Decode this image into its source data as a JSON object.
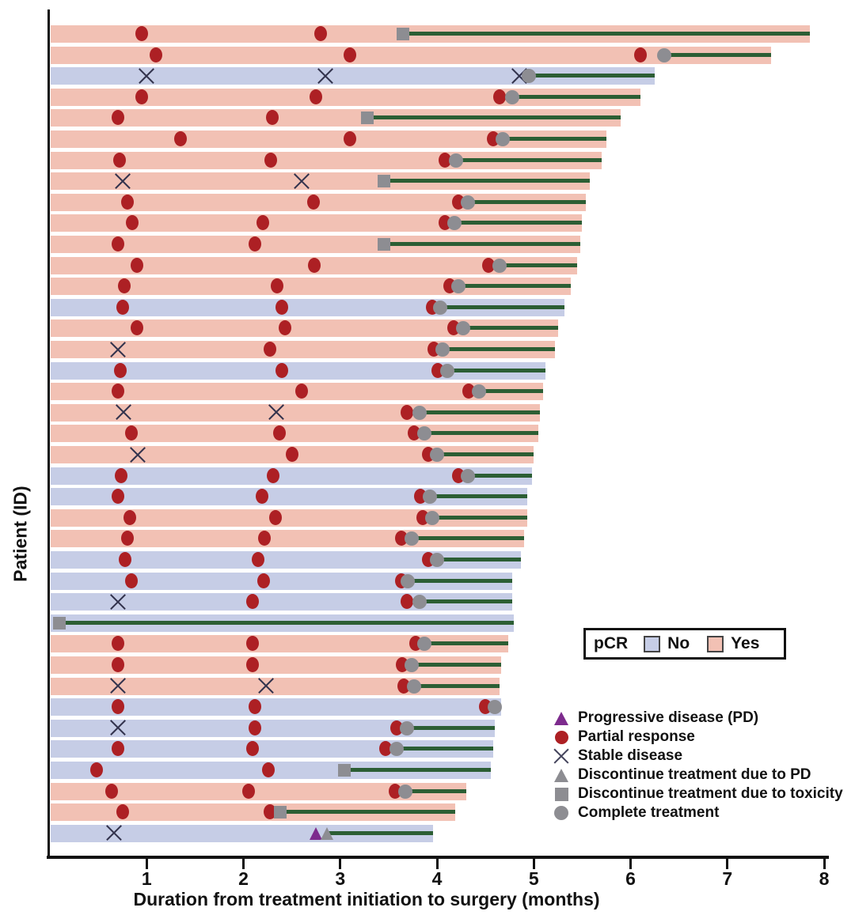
{
  "figure": {
    "x_axis_label": "Duration from treatment initiation to surgery (months)",
    "y_axis_label": "Patient (ID)"
  },
  "pcr_legend": {
    "title": "pCR",
    "no_label": "No",
    "yes_label": "Yes"
  },
  "marker_legend": [
    {
      "icon": "progressive-disease-triangle-icon",
      "label": "Progressive disease (PD)"
    },
    {
      "icon": "partial-response-circle-icon",
      "label": "Partial response"
    },
    {
      "icon": "stable-disease-x-icon",
      "label": "Stable disease"
    },
    {
      "icon": "discontinue-pd-triangle-icon",
      "label": "Discontinue treatment due to PD"
    },
    {
      "icon": "discontinue-toxicity-square-icon",
      "label": "Discontinue treatment due to toxicity"
    },
    {
      "icon": "complete-treatment-circle-icon",
      "label": "Complete treatment"
    }
  ],
  "colors": {
    "pcr_yes_bar": "#f2c1b4",
    "pcr_no_bar": "#c6cde6",
    "partial_response": "#ad2024",
    "progressive_disease": "#7d2b8d",
    "gray_marker": "#8d8d92",
    "treatment_line": "#2c5e34",
    "axis": "#111111"
  },
  "chart_data": {
    "type": "bar",
    "subtype": "swimmer-plot-horizontal",
    "title": "",
    "xlabel": "Duration from treatment initiation to surgery (months)",
    "ylabel": "Patient (ID)",
    "xlim": [
      0,
      8
    ],
    "x_ticks": [
      1,
      2,
      3,
      4,
      5,
      6,
      7,
      8
    ],
    "grid": false,
    "legend_position": "right-bottom",
    "event_types": {
      "pr": "Partial response",
      "sd": "Stable disease",
      "pd": "Progressive disease (PD)",
      "dpd": "Discontinue treatment due to PD",
      "tox": "Discontinue treatment due to toxicity",
      "comp": "Complete treatment"
    },
    "patients": [
      {
        "pcr": "Yes",
        "end": 7.85,
        "line": 3.65,
        "events": [
          {
            "t": "pr",
            "m": 0.95
          },
          {
            "t": "pr",
            "m": 2.8
          },
          {
            "t": "tox",
            "m": 3.65
          }
        ]
      },
      {
        "pcr": "Yes",
        "end": 7.45,
        "line": 6.35,
        "events": [
          {
            "t": "pr",
            "m": 1.1
          },
          {
            "t": "pr",
            "m": 3.1
          },
          {
            "t": "pr",
            "m": 6.1
          },
          {
            "t": "comp",
            "m": 6.35
          }
        ]
      },
      {
        "pcr": "No",
        "end": 6.25,
        "line": 4.95,
        "events": [
          {
            "t": "sd",
            "m": 1.0
          },
          {
            "t": "sd",
            "m": 2.85
          },
          {
            "t": "sd",
            "m": 4.85
          },
          {
            "t": "comp",
            "m": 4.95
          }
        ]
      },
      {
        "pcr": "Yes",
        "end": 6.1,
        "line": 4.78,
        "events": [
          {
            "t": "pr",
            "m": 0.95
          },
          {
            "t": "pr",
            "m": 2.75
          },
          {
            "t": "pr",
            "m": 4.65
          },
          {
            "t": "comp",
            "m": 4.78
          }
        ]
      },
      {
        "pcr": "Yes",
        "end": 5.9,
        "line": 3.28,
        "events": [
          {
            "t": "pr",
            "m": 0.7
          },
          {
            "t": "pr",
            "m": 2.3
          },
          {
            "t": "tox",
            "m": 3.28
          }
        ]
      },
      {
        "pcr": "Yes",
        "end": 5.75,
        "line": 4.68,
        "events": [
          {
            "t": "pr",
            "m": 1.35
          },
          {
            "t": "pr",
            "m": 3.1
          },
          {
            "t": "pr",
            "m": 4.58
          },
          {
            "t": "comp",
            "m": 4.68
          }
        ]
      },
      {
        "pcr": "Yes",
        "end": 5.7,
        "line": 4.2,
        "events": [
          {
            "t": "pr",
            "m": 0.72
          },
          {
            "t": "pr",
            "m": 2.28
          },
          {
            "t": "pr",
            "m": 4.08
          },
          {
            "t": "comp",
            "m": 4.2
          }
        ]
      },
      {
        "pcr": "Yes",
        "end": 5.58,
        "line": 3.45,
        "events": [
          {
            "t": "sd",
            "m": 0.75
          },
          {
            "t": "sd",
            "m": 2.6
          },
          {
            "t": "tox",
            "m": 3.45
          }
        ]
      },
      {
        "pcr": "Yes",
        "end": 5.54,
        "line": 4.32,
        "events": [
          {
            "t": "pr",
            "m": 0.8
          },
          {
            "t": "pr",
            "m": 2.72
          },
          {
            "t": "pr",
            "m": 4.22
          },
          {
            "t": "comp",
            "m": 4.32
          }
        ]
      },
      {
        "pcr": "Yes",
        "end": 5.5,
        "line": 4.18,
        "events": [
          {
            "t": "pr",
            "m": 0.85
          },
          {
            "t": "pr",
            "m": 2.2
          },
          {
            "t": "pr",
            "m": 4.08
          },
          {
            "t": "comp",
            "m": 4.18
          }
        ]
      },
      {
        "pcr": "Yes",
        "end": 5.48,
        "line": 3.45,
        "events": [
          {
            "t": "pr",
            "m": 0.7
          },
          {
            "t": "pr",
            "m": 2.12
          },
          {
            "t": "tox",
            "m": 3.45
          }
        ]
      },
      {
        "pcr": "Yes",
        "end": 5.45,
        "line": 4.65,
        "events": [
          {
            "t": "pr",
            "m": 0.9
          },
          {
            "t": "pr",
            "m": 2.73
          },
          {
            "t": "pr",
            "m": 4.53
          },
          {
            "t": "comp",
            "m": 4.65
          }
        ]
      },
      {
        "pcr": "Yes",
        "end": 5.38,
        "line": 4.22,
        "events": [
          {
            "t": "pr",
            "m": 0.77
          },
          {
            "t": "pr",
            "m": 2.35
          },
          {
            "t": "pr",
            "m": 4.13
          },
          {
            "t": "comp",
            "m": 4.22
          }
        ]
      },
      {
        "pcr": "No",
        "end": 5.32,
        "line": 4.03,
        "events": [
          {
            "t": "pr",
            "m": 0.75
          },
          {
            "t": "pr",
            "m": 2.4
          },
          {
            "t": "pr",
            "m": 3.95
          },
          {
            "t": "comp",
            "m": 4.03
          }
        ]
      },
      {
        "pcr": "Yes",
        "end": 5.25,
        "line": 4.27,
        "events": [
          {
            "t": "pr",
            "m": 0.9
          },
          {
            "t": "pr",
            "m": 2.43
          },
          {
            "t": "pr",
            "m": 4.17
          },
          {
            "t": "comp",
            "m": 4.27
          }
        ]
      },
      {
        "pcr": "Yes",
        "end": 5.22,
        "line": 4.06,
        "events": [
          {
            "t": "sd",
            "m": 0.7
          },
          {
            "t": "pr",
            "m": 2.27
          },
          {
            "t": "pr",
            "m": 3.97
          },
          {
            "t": "comp",
            "m": 4.06
          }
        ]
      },
      {
        "pcr": "No",
        "end": 5.12,
        "line": 4.11,
        "events": [
          {
            "t": "pr",
            "m": 0.73
          },
          {
            "t": "pr",
            "m": 2.4
          },
          {
            "t": "pr",
            "m": 4.01
          },
          {
            "t": "comp",
            "m": 4.11
          }
        ]
      },
      {
        "pcr": "Yes",
        "end": 5.1,
        "line": 4.43,
        "events": [
          {
            "t": "pr",
            "m": 0.7
          },
          {
            "t": "pr",
            "m": 2.6
          },
          {
            "t": "pr",
            "m": 4.33
          },
          {
            "t": "comp",
            "m": 4.43
          }
        ]
      },
      {
        "pcr": "Yes",
        "end": 5.06,
        "line": 3.82,
        "events": [
          {
            "t": "sd",
            "m": 0.76
          },
          {
            "t": "sd",
            "m": 2.34
          },
          {
            "t": "pr",
            "m": 3.69
          },
          {
            "t": "comp",
            "m": 3.82
          }
        ]
      },
      {
        "pcr": "Yes",
        "end": 5.05,
        "line": 3.87,
        "events": [
          {
            "t": "pr",
            "m": 0.84
          },
          {
            "t": "pr",
            "m": 2.37
          },
          {
            "t": "pr",
            "m": 3.76
          },
          {
            "t": "comp",
            "m": 3.87
          }
        ]
      },
      {
        "pcr": "Yes",
        "end": 5.0,
        "line": 4.0,
        "events": [
          {
            "t": "sd",
            "m": 0.91
          },
          {
            "t": "pr",
            "m": 2.5
          },
          {
            "t": "pr",
            "m": 3.91
          },
          {
            "t": "comp",
            "m": 4.0
          }
        ]
      },
      {
        "pcr": "No",
        "end": 4.98,
        "line": 4.32,
        "events": [
          {
            "t": "pr",
            "m": 0.74
          },
          {
            "t": "pr",
            "m": 2.31
          },
          {
            "t": "pr",
            "m": 4.22
          },
          {
            "t": "comp",
            "m": 4.32
          }
        ]
      },
      {
        "pcr": "No",
        "end": 4.93,
        "line": 3.93,
        "events": [
          {
            "t": "pr",
            "m": 0.7
          },
          {
            "t": "pr",
            "m": 2.19
          },
          {
            "t": "pr",
            "m": 3.83
          },
          {
            "t": "comp",
            "m": 3.93
          }
        ]
      },
      {
        "pcr": "Yes",
        "end": 4.93,
        "line": 3.95,
        "events": [
          {
            "t": "pr",
            "m": 0.83
          },
          {
            "t": "pr",
            "m": 2.33
          },
          {
            "t": "pr",
            "m": 3.85
          },
          {
            "t": "comp",
            "m": 3.95
          }
        ]
      },
      {
        "pcr": "Yes",
        "end": 4.9,
        "line": 3.74,
        "events": [
          {
            "t": "pr",
            "m": 0.8
          },
          {
            "t": "pr",
            "m": 2.22
          },
          {
            "t": "pr",
            "m": 3.63
          },
          {
            "t": "comp",
            "m": 3.74
          }
        ]
      },
      {
        "pcr": "No",
        "end": 4.87,
        "line": 4.0,
        "events": [
          {
            "t": "pr",
            "m": 0.78
          },
          {
            "t": "pr",
            "m": 2.15
          },
          {
            "t": "pr",
            "m": 3.91
          },
          {
            "t": "comp",
            "m": 4.0
          }
        ]
      },
      {
        "pcr": "No",
        "end": 4.78,
        "line": 3.7,
        "events": [
          {
            "t": "pr",
            "m": 0.84
          },
          {
            "t": "pr",
            "m": 2.21
          },
          {
            "t": "pr",
            "m": 3.63
          },
          {
            "t": "comp",
            "m": 3.7
          }
        ]
      },
      {
        "pcr": "No",
        "end": 4.78,
        "line": 3.82,
        "events": [
          {
            "t": "sd",
            "m": 0.7
          },
          {
            "t": "pr",
            "m": 2.09
          },
          {
            "t": "pr",
            "m": 3.69
          },
          {
            "t": "comp",
            "m": 3.82
          }
        ]
      },
      {
        "pcr": "No",
        "end": 4.79,
        "line": 0.1,
        "events": [
          {
            "t": "tox",
            "m": 0.1
          }
        ]
      },
      {
        "pcr": "Yes",
        "end": 4.74,
        "line": 3.87,
        "events": [
          {
            "t": "pr",
            "m": 0.7
          },
          {
            "t": "pr",
            "m": 2.09
          },
          {
            "t": "pr",
            "m": 3.78
          },
          {
            "t": "comp",
            "m": 3.87
          }
        ]
      },
      {
        "pcr": "Yes",
        "end": 4.66,
        "line": 3.74,
        "events": [
          {
            "t": "pr",
            "m": 0.7
          },
          {
            "t": "pr",
            "m": 2.09
          },
          {
            "t": "pr",
            "m": 3.64
          },
          {
            "t": "comp",
            "m": 3.74
          }
        ]
      },
      {
        "pcr": "Yes",
        "end": 4.65,
        "line": 3.76,
        "events": [
          {
            "t": "sd",
            "m": 0.7
          },
          {
            "t": "sd",
            "m": 2.23
          },
          {
            "t": "pr",
            "m": 3.66
          },
          {
            "t": "comp",
            "m": 3.76
          }
        ]
      },
      {
        "pcr": "No",
        "end": 4.66,
        "line": 4.6,
        "events": [
          {
            "t": "pr",
            "m": 0.7
          },
          {
            "t": "pr",
            "m": 2.12
          },
          {
            "t": "pr",
            "m": 4.5
          },
          {
            "t": "comp",
            "m": 4.6
          }
        ]
      },
      {
        "pcr": "No",
        "end": 4.6,
        "line": 3.69,
        "events": [
          {
            "t": "sd",
            "m": 0.7
          },
          {
            "t": "pr",
            "m": 2.12
          },
          {
            "t": "pr",
            "m": 3.58
          },
          {
            "t": "comp",
            "m": 3.69
          }
        ]
      },
      {
        "pcr": "No",
        "end": 4.58,
        "line": 3.58,
        "events": [
          {
            "t": "pr",
            "m": 0.7
          },
          {
            "t": "pr",
            "m": 2.09
          },
          {
            "t": "pr",
            "m": 3.47
          },
          {
            "t": "comp",
            "m": 3.58
          }
        ]
      },
      {
        "pcr": "No",
        "end": 4.56,
        "line": 3.04,
        "events": [
          {
            "t": "pr",
            "m": 0.48
          },
          {
            "t": "pr",
            "m": 2.26
          },
          {
            "t": "tox",
            "m": 3.04
          }
        ]
      },
      {
        "pcr": "Yes",
        "end": 4.3,
        "line": 3.67,
        "events": [
          {
            "t": "pr",
            "m": 0.64
          },
          {
            "t": "pr",
            "m": 2.05
          },
          {
            "t": "pr",
            "m": 3.57
          },
          {
            "t": "comp",
            "m": 3.67
          }
        ]
      },
      {
        "pcr": "Yes",
        "end": 4.19,
        "line": 2.38,
        "events": [
          {
            "t": "pr",
            "m": 0.75
          },
          {
            "t": "pr",
            "m": 2.27
          },
          {
            "t": "tox",
            "m": 2.38
          }
        ]
      },
      {
        "pcr": "No",
        "end": 3.96,
        "line": 2.86,
        "events": [
          {
            "t": "sd",
            "m": 0.66
          },
          {
            "t": "pd",
            "m": 2.75
          },
          {
            "t": "dpd",
            "m": 2.86
          }
        ]
      }
    ]
  }
}
